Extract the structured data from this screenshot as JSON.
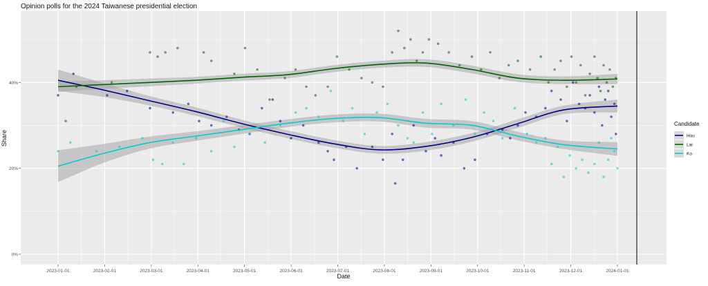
{
  "chart_data": {
    "type": "scatter",
    "title": "Opinion polls for the 2024 Taiwanese presidential election",
    "xlabel": "Date",
    "ylabel": "Share",
    "ylim": [
      0,
      0.55
    ],
    "x_ticks": [
      "2023-01-01",
      "2023-02-01",
      "2023-03-01",
      "2023-04-01",
      "2023-05-01",
      "2023-06-01",
      "2023-07-01",
      "2023-08-01",
      "2023-09-01",
      "2023-10-01",
      "2023-11-01",
      "2023-12-01",
      "2024-01-01"
    ],
    "y_ticks": [
      0,
      0.2,
      0.4
    ],
    "y_tick_labels": [
      "0%",
      "20%",
      "40%"
    ],
    "legend": {
      "title": "Candidate",
      "position": "right",
      "entries": [
        "Hou",
        "Lai",
        "Ko"
      ]
    },
    "series": [
      {
        "name": "Hou",
        "color": "#00008b",
        "trend": [
          [
            0,
            0.405
          ],
          [
            30,
            0.382
          ],
          [
            60,
            0.357
          ],
          [
            90,
            0.332
          ],
          [
            120,
            0.304
          ],
          [
            150,
            0.279
          ],
          [
            180,
            0.257
          ],
          [
            210,
            0.243
          ],
          [
            240,
            0.251
          ],
          [
            270,
            0.272
          ],
          [
            300,
            0.304
          ],
          [
            330,
            0.336
          ],
          [
            365,
            0.345
          ]
        ],
        "trend_band": [
          0.025,
          0.016,
          0.011,
          0.01,
          0.009,
          0.009,
          0.009,
          0.009,
          0.01,
          0.01,
          0.01,
          0.01,
          0.015
        ],
        "points": [
          [
            0,
            0.37
          ],
          [
            10,
            0.42
          ],
          [
            32,
            0.37
          ],
          [
            45,
            0.38
          ],
          [
            60,
            0.34
          ],
          [
            75,
            0.33
          ],
          [
            85,
            0.35
          ],
          [
            92,
            0.31
          ],
          [
            100,
            0.3
          ],
          [
            110,
            0.32
          ],
          [
            118,
            0.29
          ],
          [
            125,
            0.28
          ],
          [
            133,
            0.34
          ],
          [
            140,
            0.36
          ],
          [
            145,
            0.31
          ],
          [
            152,
            0.27
          ],
          [
            160,
            0.3
          ],
          [
            170,
            0.26
          ],
          [
            176,
            0.24
          ],
          [
            180,
            0.22
          ],
          [
            188,
            0.25
          ],
          [
            195,
            0.2
          ],
          [
            205,
            0.25
          ],
          [
            212,
            0.22
          ],
          [
            218,
            0.28
          ],
          [
            220,
            0.165
          ],
          [
            225,
            0.22
          ],
          [
            232,
            0.3
          ],
          [
            240,
            0.24
          ],
          [
            246,
            0.27
          ],
          [
            250,
            0.23
          ],
          [
            258,
            0.26
          ],
          [
            265,
            0.2
          ],
          [
            272,
            0.22
          ],
          [
            280,
            0.28
          ],
          [
            290,
            0.29
          ],
          [
            295,
            0.27
          ],
          [
            300,
            0.3
          ],
          [
            305,
            0.33
          ],
          [
            312,
            0.32
          ],
          [
            318,
            0.34
          ],
          [
            322,
            0.38
          ],
          [
            328,
            0.36
          ],
          [
            332,
            0.31
          ],
          [
            336,
            0.4
          ],
          [
            340,
            0.35
          ],
          [
            344,
            0.34
          ],
          [
            347,
            0.37
          ],
          [
            350,
            0.33
          ],
          [
            353,
            0.39
          ],
          [
            355,
            0.3
          ],
          [
            357,
            0.36
          ],
          [
            359,
            0.38
          ],
          [
            361,
            0.32
          ],
          [
            363,
            0.35
          ],
          [
            364,
            0.28
          ]
        ]
      },
      {
        "name": "Lai",
        "color": "#006400",
        "trend": [
          [
            0,
            0.39
          ],
          [
            30,
            0.395
          ],
          [
            60,
            0.4
          ],
          [
            90,
            0.405
          ],
          [
            120,
            0.412
          ],
          [
            150,
            0.418
          ],
          [
            180,
            0.432
          ],
          [
            210,
            0.442
          ],
          [
            240,
            0.445
          ],
          [
            270,
            0.43
          ],
          [
            300,
            0.41
          ],
          [
            330,
            0.405
          ],
          [
            365,
            0.408
          ]
        ],
        "trend_band": [
          0.012,
          0.01,
          0.009,
          0.008,
          0.008,
          0.008,
          0.008,
          0.008,
          0.009,
          0.009,
          0.009,
          0.009,
          0.012
        ],
        "points": [
          [
            5,
            0.31
          ],
          [
            12,
            0.39
          ],
          [
            35,
            0.4
          ],
          [
            60,
            0.47
          ],
          [
            65,
            0.46
          ],
          [
            70,
            0.47
          ],
          [
            78,
            0.48
          ],
          [
            95,
            0.47
          ],
          [
            100,
            0.45
          ],
          [
            115,
            0.42
          ],
          [
            122,
            0.48
          ],
          [
            130,
            0.43
          ],
          [
            138,
            0.36
          ],
          [
            148,
            0.41
          ],
          [
            155,
            0.43
          ],
          [
            162,
            0.39
          ],
          [
            168,
            0.37
          ],
          [
            176,
            0.39
          ],
          [
            182,
            0.46
          ],
          [
            190,
            0.43
          ],
          [
            198,
            0.41
          ],
          [
            205,
            0.4
          ],
          [
            212,
            0.39
          ],
          [
            218,
            0.47
          ],
          [
            222,
            0.52
          ],
          [
            226,
            0.48
          ],
          [
            230,
            0.5
          ],
          [
            234,
            0.45
          ],
          [
            238,
            0.47
          ],
          [
            242,
            0.5
          ],
          [
            248,
            0.49
          ],
          [
            255,
            0.47
          ],
          [
            262,
            0.44
          ],
          [
            270,
            0.46
          ],
          [
            276,
            0.43
          ],
          [
            282,
            0.47
          ],
          [
            288,
            0.41
          ],
          [
            294,
            0.44
          ],
          [
            300,
            0.45
          ],
          [
            308,
            0.43
          ],
          [
            315,
            0.46
          ],
          [
            320,
            0.4
          ],
          [
            324,
            0.43
          ],
          [
            328,
            0.45
          ],
          [
            332,
            0.39
          ],
          [
            335,
            0.46
          ],
          [
            338,
            0.4
          ],
          [
            341,
            0.44
          ],
          [
            344,
            0.37
          ],
          [
            347,
            0.42
          ],
          [
            350,
            0.46
          ],
          [
            352,
            0.41
          ],
          [
            354,
            0.38
          ],
          [
            356,
            0.44
          ],
          [
            358,
            0.4
          ],
          [
            360,
            0.43
          ],
          [
            362,
            0.39
          ],
          [
            364,
            0.41
          ]
        ]
      },
      {
        "name": "Ko",
        "color": "#00ced1",
        "trend": [
          [
            0,
            0.205
          ],
          [
            30,
            0.235
          ],
          [
            60,
            0.26
          ],
          [
            90,
            0.275
          ],
          [
            120,
            0.29
          ],
          [
            150,
            0.305
          ],
          [
            180,
            0.316
          ],
          [
            210,
            0.318
          ],
          [
            240,
            0.305
          ],
          [
            270,
            0.3
          ],
          [
            300,
            0.275
          ],
          [
            330,
            0.255
          ],
          [
            365,
            0.245
          ]
        ],
        "trend_band": [
          0.037,
          0.022,
          0.014,
          0.011,
          0.01,
          0.009,
          0.009,
          0.009,
          0.01,
          0.01,
          0.01,
          0.01,
          0.016
        ],
        "points": [
          [
            0,
            0.24
          ],
          [
            8,
            0.26
          ],
          [
            25,
            0.24
          ],
          [
            40,
            0.25
          ],
          [
            55,
            0.27
          ],
          [
            62,
            0.22
          ],
          [
            68,
            0.21
          ],
          [
            75,
            0.26
          ],
          [
            82,
            0.21
          ],
          [
            90,
            0.27
          ],
          [
            100,
            0.24
          ],
          [
            108,
            0.31
          ],
          [
            115,
            0.25
          ],
          [
            125,
            0.28
          ],
          [
            135,
            0.26
          ],
          [
            145,
            0.3
          ],
          [
            155,
            0.33
          ],
          [
            162,
            0.34
          ],
          [
            170,
            0.32
          ],
          [
            178,
            0.38
          ],
          [
            186,
            0.31
          ],
          [
            192,
            0.34
          ],
          [
            200,
            0.28
          ],
          [
            208,
            0.33
          ],
          [
            215,
            0.35
          ],
          [
            222,
            0.3
          ],
          [
            228,
            0.27
          ],
          [
            232,
            0.26
          ],
          [
            238,
            0.33
          ],
          [
            244,
            0.28
          ],
          [
            250,
            0.35
          ],
          [
            258,
            0.3
          ],
          [
            266,
            0.36
          ],
          [
            272,
            0.28
          ],
          [
            278,
            0.33
          ],
          [
            284,
            0.31
          ],
          [
            290,
            0.27
          ],
          [
            298,
            0.34
          ],
          [
            306,
            0.28
          ],
          [
            312,
            0.26
          ],
          [
            318,
            0.27
          ],
          [
            322,
            0.21
          ],
          [
            326,
            0.25
          ],
          [
            330,
            0.18
          ],
          [
            334,
            0.23
          ],
          [
            338,
            0.2
          ],
          [
            342,
            0.22
          ],
          [
            346,
            0.19
          ],
          [
            350,
            0.21
          ],
          [
            353,
            0.26
          ],
          [
            356,
            0.18
          ],
          [
            359,
            0.22
          ],
          [
            361,
            0.27
          ],
          [
            363,
            0.24
          ],
          [
            365,
            0.2
          ]
        ]
      }
    ]
  }
}
